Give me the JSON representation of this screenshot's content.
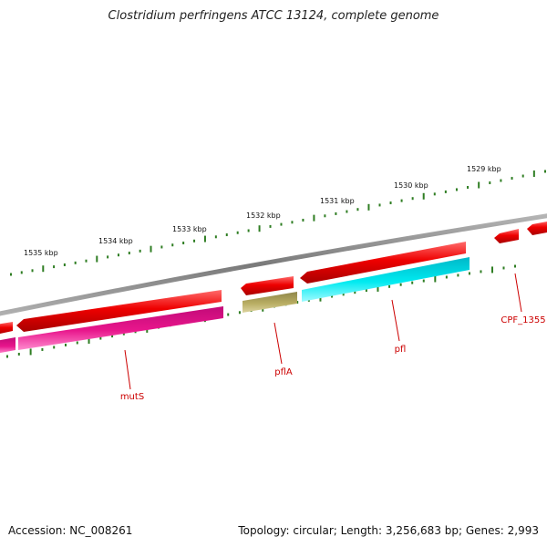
{
  "title": "Clostridium perfringens ATCC 13124, complete genome",
  "footer": {
    "accession": "Accession: NC_008261",
    "summary": "Topology: circular; Length: 3,256,683 bp; Genes: 2,993"
  },
  "scale_labels": [
    "1535 kbp",
    "1534 kbp",
    "1533 kbp",
    "1532 kbp",
    "1531 kbp",
    "1530 kbp",
    "1529 kbp"
  ],
  "gene_labels": [
    "mutS",
    "pflA",
    "pfl",
    "CPF_1355"
  ],
  "colors": {
    "backbone": "#8a8a8a",
    "tick": "#2e7d22",
    "cds": "#ee0000",
    "cds_pink": "#e8168c",
    "cds_olive": "#b8ad62",
    "cds_cyan": "#00eaf0",
    "label": "#cc0000"
  }
}
